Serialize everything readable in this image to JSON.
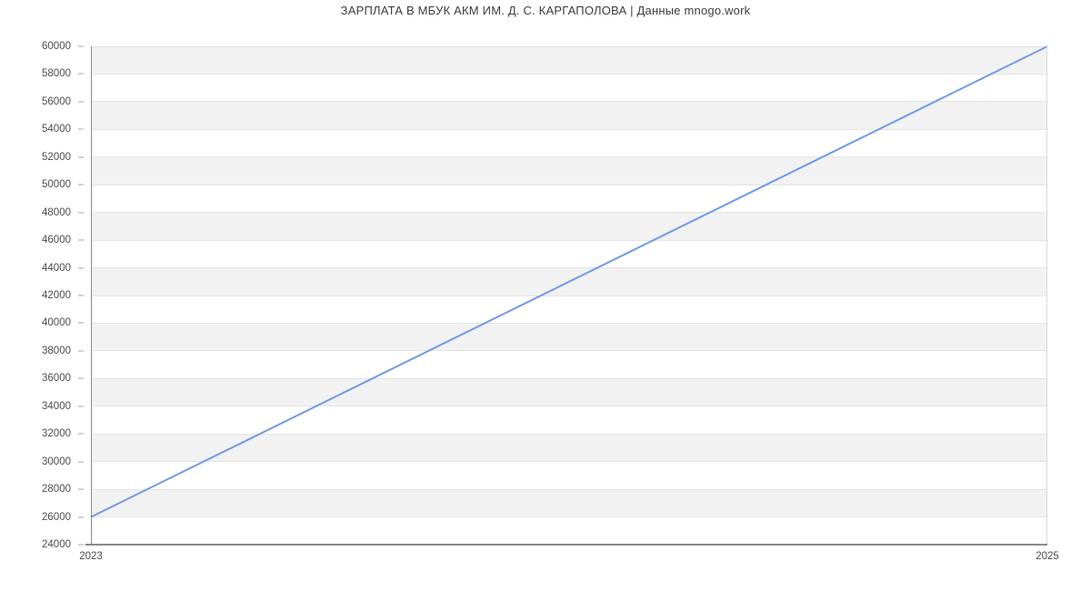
{
  "title": "ЗАРПЛАТА В МБУК АКМ ИМ. Д. С. КАРГАПОЛОВА | Данные mnogo.work",
  "chart_data": {
    "type": "line",
    "title": "ЗАРПЛАТА В МБУК АКМ ИМ. Д. С. КАРГАПОЛОВА | Данные mnogo.work",
    "x": [
      2023,
      2025
    ],
    "series": [
      {
        "values": [
          26000,
          60000
        ]
      }
    ],
    "xlim": [
      2023,
      2025
    ],
    "ylim": [
      24000,
      60000
    ],
    "ytick_step": 2000,
    "ytick_labels": [
      "24000",
      "26000",
      "28000",
      "30000",
      "32000",
      "34000",
      "36000",
      "38000",
      "40000",
      "42000",
      "44000",
      "46000",
      "48000",
      "50000",
      "52000",
      "54000",
      "56000",
      "58000",
      "60000"
    ],
    "xtick_labels": [
      "2023",
      "2025"
    ],
    "grid": "horizontal",
    "striped_background": true,
    "legend": "none",
    "colors": {
      "line": "#6f9ae8",
      "stripe": "#f2f2f2",
      "grid": "#e4e4e4",
      "axis": "#8a8a8a",
      "tick_label": "#4d4d4d",
      "title": "#3d3d3d"
    }
  }
}
